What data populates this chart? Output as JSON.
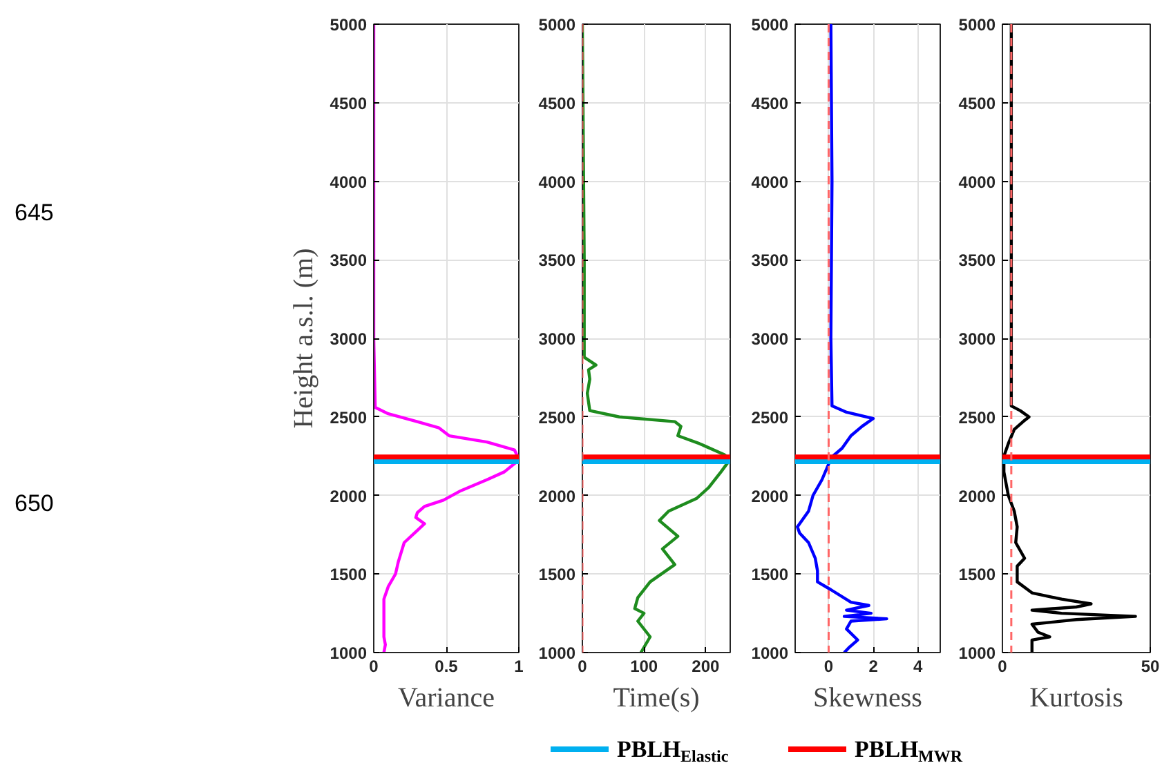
{
  "chart_data": [
    {
      "type": "line",
      "ylabel": "Height a.s.l. (m)",
      "xlabel": "Variance",
      "xlim": [
        0,
        1
      ],
      "xticks": [
        0,
        0.5,
        1
      ],
      "ylim": [
        1000,
        5000
      ],
      "yticks": [
        1000,
        1500,
        2000,
        2500,
        3000,
        3500,
        4000,
        4500,
        5000
      ],
      "grid": true,
      "annotations": [
        "645",
        "650"
      ],
      "series": [
        {
          "color": "#ff00ff",
          "x": [
            0,
            0,
            0.01,
            0.1,
            0.3,
            0.45,
            0.52,
            0.78,
            0.97,
            0.99,
            0.98,
            0.9,
            0.78,
            0.6,
            0.48,
            0.35,
            0.3,
            0.29,
            0.35,
            0.28,
            0.21,
            0.19,
            0.17,
            0.15,
            0.1,
            0.07,
            0.07,
            0.08,
            0.07
          ],
          "values": [
            5000,
            3000,
            2560,
            2520,
            2470,
            2430,
            2380,
            2340,
            2290,
            2250,
            2210,
            2150,
            2100,
            2030,
            1970,
            1930,
            1890,
            1860,
            1820,
            1760,
            1700,
            1640,
            1580,
            1500,
            1420,
            1340,
            1100,
            1050,
            1000
          ]
        }
      ],
      "ref_lines": [
        {
          "axis": "y",
          "value": 2215,
          "color": "#00b0f0",
          "label": null
        },
        {
          "axis": "y",
          "value": 2245,
          "color": "#ff0000",
          "label": null
        }
      ]
    },
    {
      "type": "line",
      "xlabel": "Time(s)",
      "xlim": [
        0,
        240
      ],
      "xticks": [
        0,
        100,
        200
      ],
      "ylim": [
        1000,
        5000
      ],
      "yticks": [
        1000,
        1500,
        2000,
        2500,
        3000,
        3500,
        4000,
        4500,
        5000
      ],
      "grid": true,
      "series": [
        {
          "color": "#1e8c1e",
          "x": [
            0,
            3,
            3,
            22,
            10,
            12,
            8,
            12,
            60,
            150,
            160,
            155,
            190,
            230,
            240,
            225,
            205,
            185,
            140,
            125,
            155,
            130,
            150,
            110,
            90,
            85,
            100,
            90,
            110,
            95
          ],
          "values": [
            5000,
            3500,
            2880,
            2830,
            2800,
            2740,
            2650,
            2540,
            2500,
            2470,
            2440,
            2380,
            2330,
            2260,
            2230,
            2150,
            2050,
            1980,
            1900,
            1840,
            1740,
            1660,
            1560,
            1450,
            1350,
            1280,
            1250,
            1200,
            1100,
            1000
          ]
        }
      ],
      "ref_lines": [
        {
          "axis": "y",
          "value": 2215,
          "color": "#00b0f0",
          "label": null
        },
        {
          "axis": "y",
          "value": 2245,
          "color": "#ff0000",
          "label": null
        },
        {
          "axis": "x",
          "value": 0,
          "color": "#ff6666",
          "line_style": "dashed",
          "label": null
        }
      ]
    },
    {
      "type": "line",
      "xlabel": "Skewness",
      "xlim": [
        -1.5,
        5
      ],
      "xticks": [
        0,
        2,
        4
      ],
      "ylim": [
        1000,
        5000
      ],
      "yticks": [
        1000,
        1500,
        2000,
        2500,
        3000,
        3500,
        4000,
        4500,
        5000
      ],
      "grid": true,
      "series": [
        {
          "color": "#0000ff",
          "x": [
            0.1,
            0.15,
            0.1,
            0.15,
            0.8,
            2.0,
            1.5,
            1.0,
            0.6,
            0.1,
            0,
            -0.3,
            -0.7,
            -0.9,
            -1.4,
            -1.3,
            -0.9,
            -0.6,
            -0.5,
            -0.5,
            0.1,
            1.0,
            1.8,
            0.8,
            1.9,
            0.7,
            2.6,
            1.0,
            0.8,
            1.3,
            0.9,
            0.7
          ],
          "values": [
            5000,
            4000,
            3000,
            2570,
            2530,
            2490,
            2440,
            2380,
            2300,
            2240,
            2200,
            2100,
            2000,
            1900,
            1800,
            1760,
            1700,
            1600,
            1520,
            1450,
            1400,
            1320,
            1300,
            1270,
            1250,
            1230,
            1215,
            1200,
            1150,
            1080,
            1030,
            1000
          ]
        }
      ],
      "ref_lines": [
        {
          "axis": "y",
          "value": 2215,
          "color": "#00b0f0",
          "label": null
        },
        {
          "axis": "y",
          "value": 2245,
          "color": "#ff0000",
          "label": null
        },
        {
          "axis": "x",
          "value": 0,
          "color": "#ff6666",
          "line_style": "dashed",
          "label": null
        }
      ]
    },
    {
      "type": "line",
      "xlabel": "Kurtosis",
      "xlim": [
        0,
        50
      ],
      "xticks": [
        0,
        50
      ],
      "ylim": [
        1000,
        5000
      ],
      "yticks": [
        1000,
        1500,
        2000,
        2500,
        3000,
        3500,
        4000,
        4500,
        5000
      ],
      "grid": true,
      "legend": "bottom",
      "series": [
        {
          "color": "#000000",
          "x": [
            3,
            3,
            6,
            9,
            7,
            4,
            2,
            0.5,
            0.5,
            2,
            4,
            5,
            4.5,
            7.5,
            5,
            5,
            10,
            20,
            30,
            25,
            10,
            20,
            45,
            25,
            10,
            12,
            16,
            10,
            10
          ],
          "values": [
            5000,
            2570,
            2540,
            2500,
            2470,
            2420,
            2330,
            2250,
            2150,
            2000,
            1900,
            1800,
            1700,
            1600,
            1550,
            1450,
            1380,
            1340,
            1310,
            1290,
            1270,
            1250,
            1230,
            1210,
            1180,
            1130,
            1100,
            1080,
            1000
          ]
        }
      ],
      "ref_lines": [
        {
          "axis": "y",
          "value": 2215,
          "color": "#00b0f0",
          "label": "PBLH$_{Elastic}$"
        },
        {
          "axis": "y",
          "value": 2245,
          "color": "#ff0000",
          "label": "PBLH$_{MWR}$"
        },
        {
          "axis": "x",
          "value": 3,
          "color": "#ff6666",
          "line_style": "dashed",
          "label": null
        }
      ]
    }
  ]
}
